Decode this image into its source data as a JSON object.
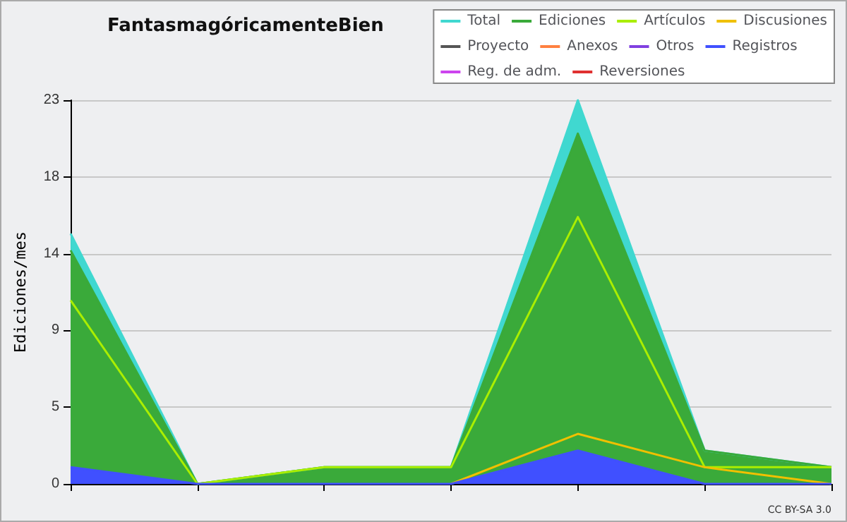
{
  "chart_data": {
    "type": "line",
    "title": "FantasmagóricamenteBien",
    "ylabel": "Ediciones/mes",
    "categories": [
      null,
      null,
      null,
      null,
      null,
      null,
      null
    ],
    "series": [
      {
        "name": "Total",
        "type": "area",
        "color": "#40d8d0",
        "values": [
          15,
          0,
          1,
          1,
          23,
          2,
          1
        ]
      },
      {
        "name": "Ediciones",
        "type": "area",
        "color": "#3aaa3a",
        "values": [
          14,
          0,
          1,
          1,
          21,
          2,
          1
        ]
      },
      {
        "name": "Artículos",
        "color": "#aaee00",
        "values": [
          11,
          0,
          1,
          1,
          16,
          1,
          1
        ]
      },
      {
        "name": "Discusiones",
        "color": "#f0c000",
        "values": [
          null,
          null,
          null,
          0,
          3,
          1,
          0
        ]
      },
      {
        "name": "Proyecto",
        "color": "#555555",
        "values": [
          null,
          null,
          null,
          null,
          null,
          null,
          null
        ]
      },
      {
        "name": "Anexos",
        "color": "#ff8040",
        "values": [
          null,
          null,
          null,
          null,
          null,
          null,
          null
        ]
      },
      {
        "name": "Otros",
        "color": "#8040e0",
        "values": [
          null,
          null,
          null,
          null,
          null,
          null,
          null
        ]
      },
      {
        "name": "Registros",
        "type": "area",
        "color": "#4050ff",
        "values": [
          1,
          0,
          0,
          0,
          2,
          0,
          0
        ]
      },
      {
        "name": "Reg. de adm.",
        "color": "#cc44ee",
        "values": [
          null,
          null,
          null,
          null,
          null,
          null,
          null
        ]
      },
      {
        "name": "Reversiones",
        "color": "#e03030",
        "values": [
          null,
          null,
          null,
          null,
          null,
          null,
          null
        ]
      }
    ],
    "ylim": [
      0,
      23
    ],
    "yticks": [
      0,
      {
        "value": 4.6,
        "label": "5"
      },
      {
        "value": 9.2,
        "label": "9"
      },
      {
        "value": 13.8,
        "label": "14"
      },
      {
        "value": 18.4,
        "label": "18"
      },
      23
    ],
    "grid": "y",
    "legend": "top right",
    "marker": "none",
    "annotations": [
      "CC BY-SA 3.0"
    ]
  }
}
